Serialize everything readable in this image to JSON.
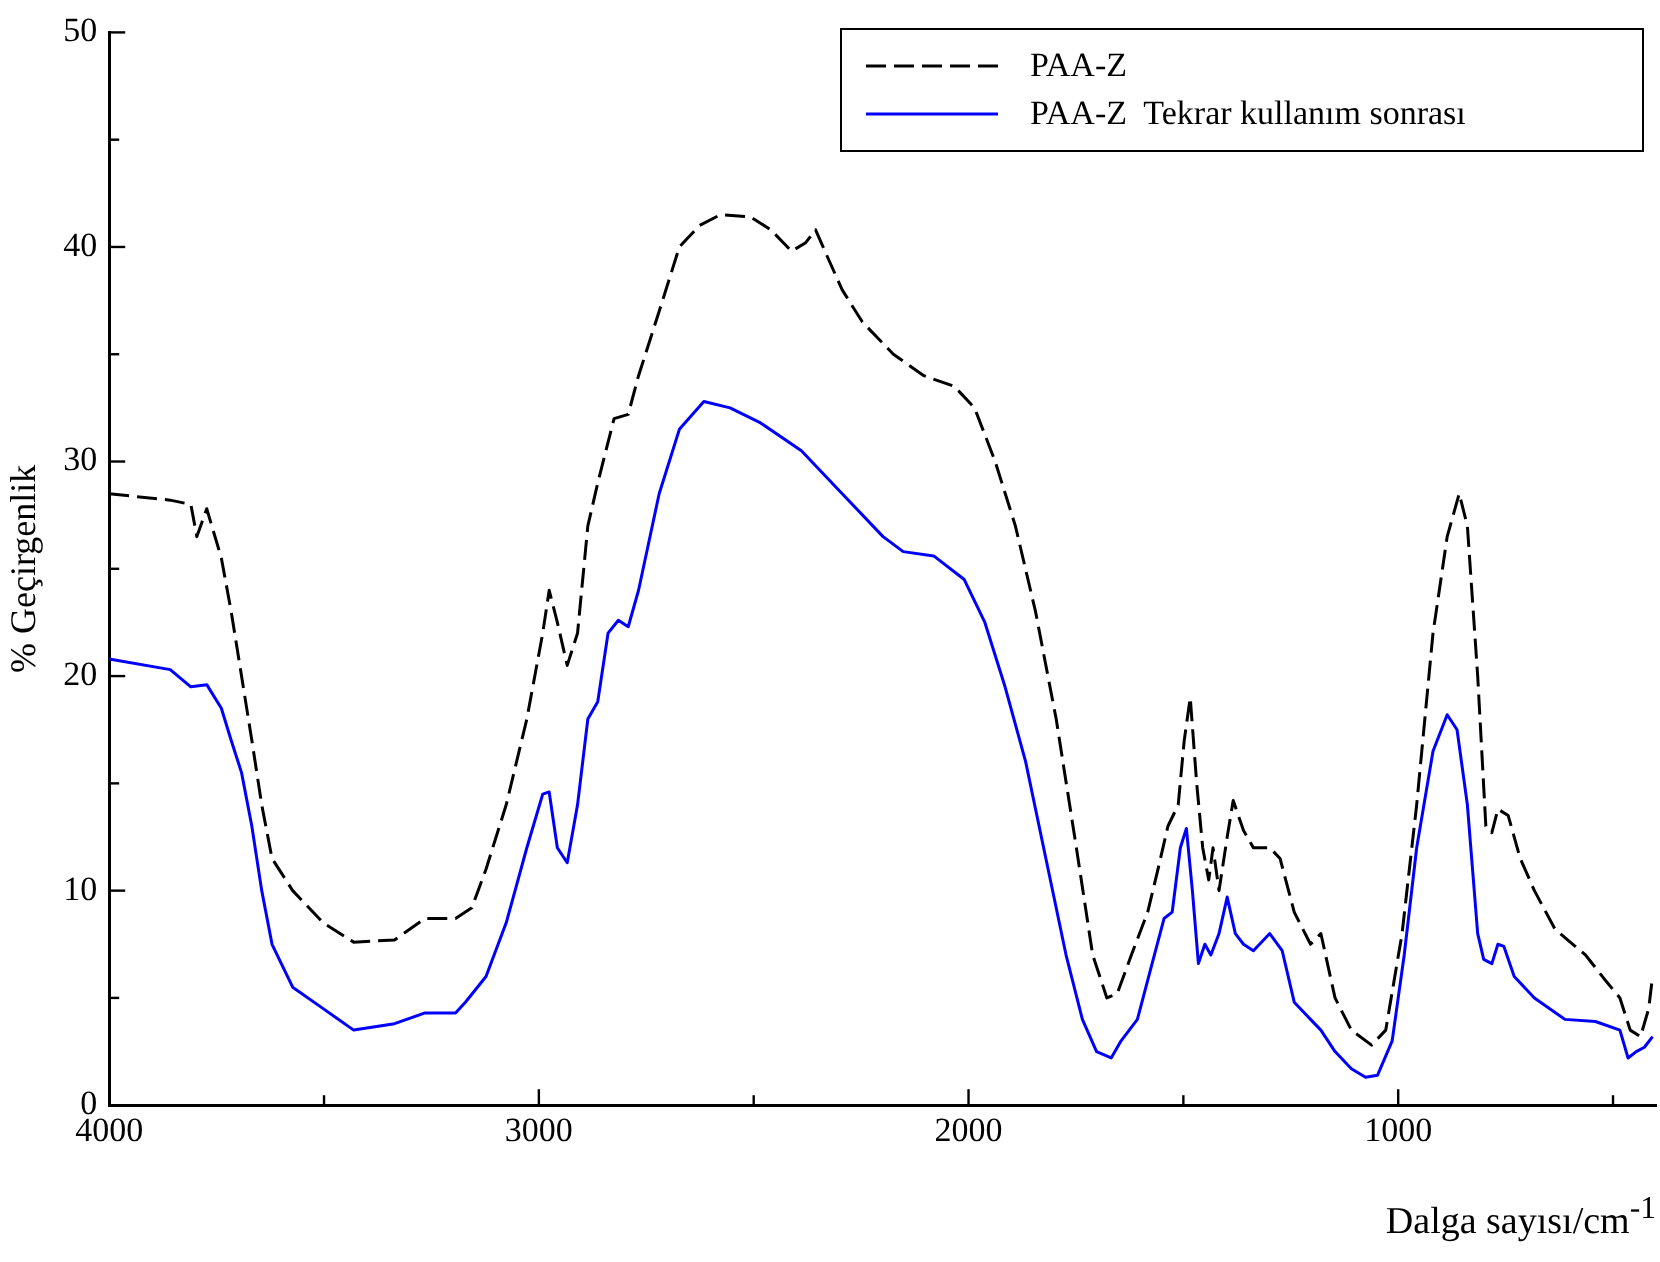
{
  "chart_data": {
    "type": "line",
    "xlabel": "Dalga sayısı/cm$^{-1}$",
    "ylabel": "% Geçirgenlik",
    "xlim": [
      4000,
      400
    ],
    "xticks": [
      4000,
      {
        "value": 3500,
        "label": null
      },
      3000,
      {
        "value": 2500,
        "label": null
      },
      2000,
      {
        "value": 1500,
        "label": null
      },
      1000,
      {
        "value": 500,
        "label": null
      }
    ],
    "ylim": [
      0,
      50
    ],
    "yticks": [
      0,
      {
        "value": 5,
        "label": null
      },
      10,
      {
        "value": 15,
        "label": null
      },
      20,
      {
        "value": 25,
        "label": null
      },
      30,
      {
        "value": 35,
        "label": null
      },
      40,
      {
        "value": 45,
        "label": null
      },
      50
    ],
    "grid": false,
    "legend": "top right",
    "marker": "none",
    "series": [
      {
        "name": "PAA-Z",
        "color": "#000000",
        "line_style": "dashed",
        "x": [
          4000,
          3858,
          3810,
          3796,
          3773,
          3739,
          3716,
          3692,
          3668,
          3645,
          3621,
          3573,
          3502,
          3431,
          3336,
          3265,
          3194,
          3156,
          3123,
          3076,
          3028,
          2991,
          2976,
          2957,
          2934,
          2910,
          2886,
          2863,
          2825,
          2792,
          2768,
          2720,
          2673,
          2626,
          2578,
          2507,
          2460,
          2412,
          2379,
          2356,
          2332,
          2294,
          2247,
          2175,
          2104,
          2033,
          1986,
          1938,
          1891,
          1844,
          1796,
          1749,
          1711,
          1678,
          1654,
          1621,
          1583,
          1559,
          1536,
          1512,
          1498,
          1484,
          1469,
          1455,
          1441,
          1431,
          1417,
          1398,
          1384,
          1360,
          1337,
          1299,
          1275,
          1242,
          1204,
          1180,
          1147,
          1109,
          1062,
          1029,
          991,
          957,
          919,
          886,
          858,
          839,
          815,
          796,
          782,
          768,
          744,
          716,
          683,
          635,
          564,
          517,
          484,
          460,
          436,
          417,
          408
        ],
        "values": [
          28.5,
          28.2,
          28.0,
          26.5,
          27.8,
          25.5,
          23,
          20,
          17,
          14,
          11.5,
          10,
          8.5,
          7.6,
          7.7,
          8.7,
          8.7,
          9.2,
          11,
          14,
          18,
          22,
          24,
          22.5,
          20.5,
          22,
          27,
          29,
          32,
          32.2,
          34,
          37,
          40,
          41,
          41.5,
          41.4,
          40.8,
          39.8,
          40.2,
          40.8,
          39.7,
          38,
          36.5,
          35,
          34,
          33.5,
          32.5,
          30,
          27,
          23,
          18,
          12,
          7,
          5,
          5.2,
          7,
          9,
          11,
          13,
          14,
          17,
          19,
          15,
          12,
          10.5,
          12,
          10,
          12.5,
          14.2,
          12.8,
          12,
          12,
          11.5,
          9,
          7.5,
          8,
          5,
          3.5,
          2.8,
          3.5,
          8,
          14,
          22,
          26.5,
          28.5,
          27,
          20,
          13,
          12.7,
          13.8,
          13.5,
          11.5,
          10,
          8.2,
          7,
          5.8,
          5,
          3.5,
          3.2,
          4.5,
          6
        ]
      },
      {
        "name": "PAA-Z  Tekrar kullanım sonrası",
        "color": "#0000ff",
        "line_style": "solid",
        "x": [
          4000,
          3858,
          3810,
          3773,
          3739,
          3716,
          3692,
          3668,
          3645,
          3621,
          3573,
          3502,
          3431,
          3336,
          3265,
          3194,
          3171,
          3123,
          3076,
          3028,
          2991,
          2976,
          2957,
          2934,
          2910,
          2886,
          2863,
          2839,
          2815,
          2792,
          2768,
          2720,
          2673,
          2616,
          2555,
          2484,
          2389,
          2294,
          2199,
          2152,
          2081,
          2010,
          1962,
          1915,
          1867,
          1820,
          1773,
          1735,
          1702,
          1668,
          1645,
          1607,
          1574,
          1545,
          1526,
          1507,
          1493,
          1479,
          1465,
          1450,
          1436,
          1417,
          1398,
          1379,
          1360,
          1337,
          1299,
          1270,
          1242,
          1204,
          1180,
          1147,
          1109,
          1076,
          1048,
          1014,
          986,
          957,
          919,
          886,
          863,
          839,
          815,
          801,
          782,
          768,
          754,
          730,
          683,
          612,
          541,
          484,
          465,
          446,
          427,
          408
        ],
        "values": [
          20.8,
          20.3,
          19.5,
          19.6,
          18.5,
          17,
          15.5,
          13,
          10,
          7.5,
          5.5,
          4.5,
          3.5,
          3.8,
          4.3,
          4.3,
          4.8,
          6,
          8.5,
          12,
          14.5,
          14.6,
          12,
          11.3,
          14,
          18,
          18.8,
          22,
          22.6,
          22.3,
          24,
          28.5,
          31.5,
          32.8,
          32.5,
          31.8,
          30.5,
          28.5,
          26.5,
          25.8,
          25.6,
          24.5,
          22.5,
          19.5,
          16,
          11.5,
          7,
          4,
          2.5,
          2.2,
          3,
          4,
          6.5,
          8.7,
          9,
          12,
          12.9,
          10,
          6.6,
          7.5,
          7,
          8,
          9.7,
          8,
          7.5,
          7.2,
          8,
          7.2,
          4.8,
          4,
          3.5,
          2.5,
          1.7,
          1.3,
          1.4,
          3,
          7,
          12,
          16.5,
          18.2,
          17.5,
          14,
          8,
          6.8,
          6.6,
          7.5,
          7.4,
          6,
          5,
          4,
          3.9,
          3.5,
          2.2,
          2.5,
          2.7,
          3.2
        ]
      }
    ]
  }
}
